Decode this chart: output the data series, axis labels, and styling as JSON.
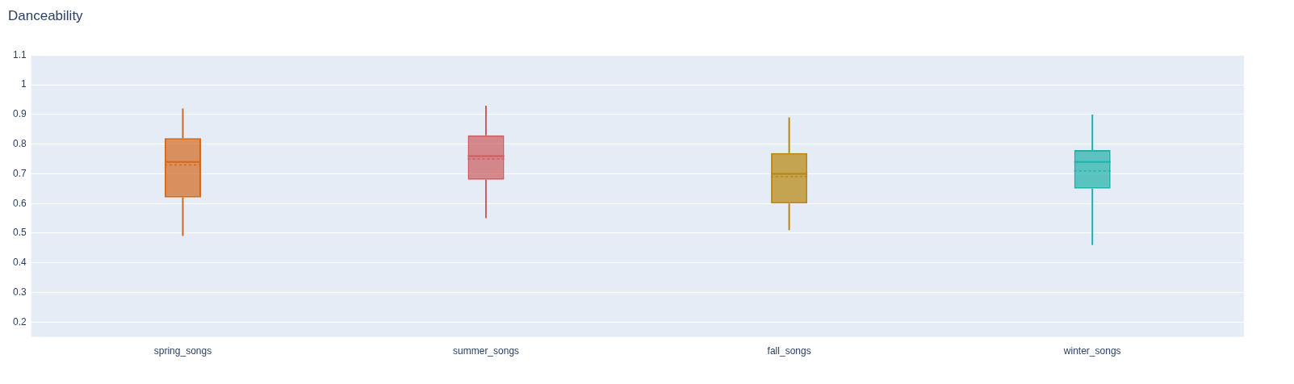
{
  "chart_data": {
    "type": "box",
    "title": "Danceability",
    "categories": [
      "spring_songs",
      "summer_songs",
      "fall_songs",
      "winter_songs"
    ],
    "colors": [
      "#d2691e",
      "#cd5c5c",
      "#b8860b",
      "#20b2aa"
    ],
    "boxes": [
      {
        "low": 0.49,
        "q1": 0.62,
        "median": 0.74,
        "q3": 0.82,
        "high": 0.92,
        "mean": 0.73
      },
      {
        "low": 0.55,
        "q1": 0.68,
        "median": 0.76,
        "q3": 0.83,
        "high": 0.93,
        "mean": 0.75
      },
      {
        "low": 0.51,
        "q1": 0.6,
        "median": 0.7,
        "q3": 0.77,
        "high": 0.89,
        "mean": 0.69
      },
      {
        "low": 0.46,
        "q1": 0.65,
        "median": 0.74,
        "q3": 0.78,
        "high": 0.9,
        "mean": 0.71
      }
    ],
    "ylim": [
      0.15,
      1.1
    ],
    "yticks": [
      0.2,
      0.3,
      0.4,
      0.5,
      0.6,
      0.7,
      0.8,
      0.9,
      1,
      1.1
    ],
    "grid": "y"
  }
}
